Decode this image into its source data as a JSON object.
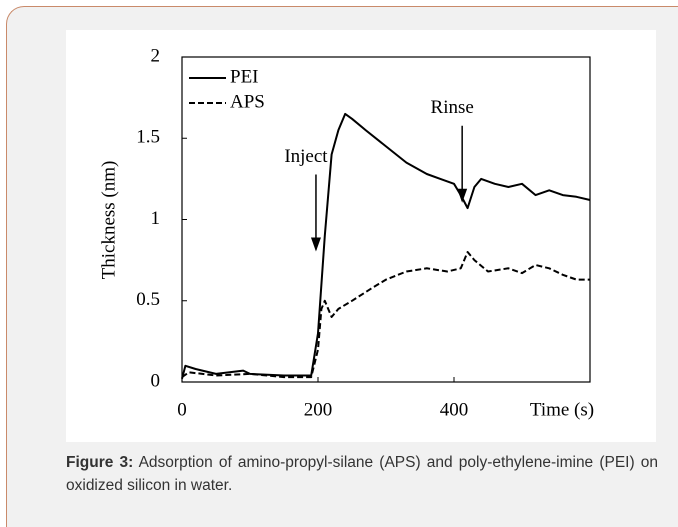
{
  "chart_data": {
    "type": "line",
    "xlabel": "Time (s)",
    "ylabel": "Thickness (nm)",
    "xlim": [
      0,
      600
    ],
    "xticks": [
      0,
      200,
      400
    ],
    "ylim": [
      0,
      2
    ],
    "yticks": [
      0,
      0.5,
      1,
      1.5,
      2
    ],
    "legend": "top-left",
    "annotations": [
      {
        "text": "Inject",
        "x": 197,
        "y": 1.0
      },
      {
        "text": "Rinse",
        "x": 412,
        "y": 1.3
      }
    ],
    "series": [
      {
        "name": "PEI",
        "color": "#000000",
        "dash": false,
        "x": [
          0,
          5,
          20,
          50,
          90,
          100,
          150,
          190,
          200,
          210,
          220,
          230,
          240,
          250,
          270,
          300,
          330,
          360,
          380,
          400,
          410,
          420,
          430,
          440,
          460,
          480,
          500,
          520,
          540,
          560,
          580,
          600
        ],
        "values": [
          0.02,
          0.1,
          0.08,
          0.05,
          0.07,
          0.05,
          0.04,
          0.04,
          0.3,
          0.9,
          1.4,
          1.55,
          1.65,
          1.62,
          1.55,
          1.45,
          1.35,
          1.28,
          1.25,
          1.22,
          1.15,
          1.07,
          1.2,
          1.25,
          1.22,
          1.2,
          1.22,
          1.15,
          1.18,
          1.15,
          1.14,
          1.12
        ]
      },
      {
        "name": "APS",
        "color": "#000000",
        "dash": true,
        "x": [
          0,
          10,
          50,
          100,
          150,
          190,
          200,
          205,
          210,
          220,
          230,
          250,
          280,
          300,
          330,
          360,
          390,
          410,
          420,
          430,
          450,
          480,
          500,
          520,
          540,
          560,
          580,
          600
        ],
        "values": [
          0.03,
          0.06,
          0.04,
          0.05,
          0.03,
          0.03,
          0.2,
          0.45,
          0.5,
          0.4,
          0.45,
          0.5,
          0.58,
          0.63,
          0.68,
          0.7,
          0.68,
          0.7,
          0.8,
          0.75,
          0.68,
          0.7,
          0.67,
          0.72,
          0.7,
          0.66,
          0.63,
          0.63
        ]
      }
    ]
  },
  "caption": {
    "label": "Figure 3:",
    "text": "Adsorption of amino-propyl-silane (APS) and poly-ethylene-imine (PEI) on oxidized silicon in water."
  }
}
